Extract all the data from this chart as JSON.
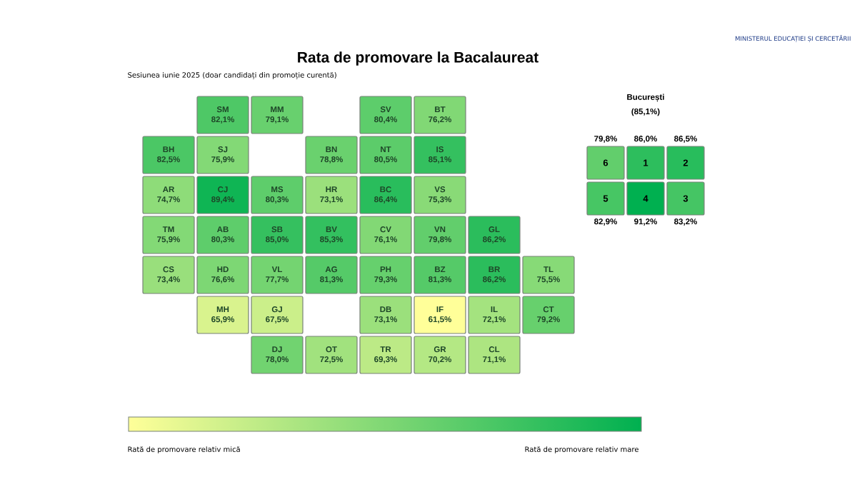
{
  "chart_data": [
    {
      "type": "other",
      "title": "Rata de promovare la Bacalaureat",
      "subtitle": "Sesiunea iunie 2025 (doar candidați din promoție curentă)",
      "categories": [
        "SM",
        "MM",
        "SV",
        "BT",
        "BH",
        "SJ",
        "BN",
        "NT",
        "IS",
        "AR",
        "CJ",
        "MS",
        "HR",
        "BC",
        "VS",
        "TM",
        "AB",
        "SB",
        "BV",
        "CV",
        "VN",
        "GL",
        "CS",
        "HD",
        "VL",
        "AG",
        "PH",
        "BZ",
        "BR",
        "TL",
        "MH",
        "GJ",
        "DB",
        "IF",
        "IL",
        "CT",
        "DJ",
        "OT",
        "TR",
        "GR",
        "CL"
      ],
      "values": [
        82.1,
        79.1,
        80.4,
        76.2,
        82.5,
        75.9,
        78.8,
        80.5,
        85.1,
        74.7,
        89.4,
        80.3,
        73.1,
        86.4,
        75.3,
        75.9,
        80.3,
        85.0,
        85.3,
        76.1,
        79.8,
        86.2,
        73.4,
        76.6,
        77.7,
        81.3,
        79.3,
        81.3,
        86.2,
        75.5,
        65.9,
        67.5,
        73.1,
        61.5,
        72.1,
        79.2,
        78.0,
        72.5,
        69.3,
        70.2,
        71.1
      ],
      "value_labels": [
        "82,1%",
        "79,1%",
        "80,4%",
        "76,2%",
        "82,5%",
        "75,9%",
        "78,8%",
        "80,5%",
        "85,1%",
        "74,7%",
        "89,4%",
        "80,3%",
        "73,1%",
        "86,4%",
        "75,3%",
        "75,9%",
        "80,3%",
        "85,0%",
        "85,3%",
        "76,1%",
        "79,8%",
        "86,2%",
        "73,4%",
        "76,6%",
        "77,7%",
        "81,3%",
        "79,3%",
        "81,3%",
        "86,2%",
        "75,5%",
        "65,9%",
        "67,5%",
        "73,1%",
        "61,5%",
        "72,1%",
        "79,2%",
        "78,0%",
        "72,5%",
        "69,3%",
        "70,2%",
        "71,1%"
      ],
      "annotations": [
        "MINISTERUL EDUCAȚIEI ȘI CERCETĂRII",
        "Rată de promovare relativ mică",
        "Rată de promovare relativ mare"
      ]
    },
    {
      "type": "other",
      "title": "București",
      "subtitle": "(85,1%)",
      "categories": [
        "6",
        "1",
        "2",
        "5",
        "4",
        "3"
      ],
      "values": [
        79.8,
        86.0,
        86.5,
        82.9,
        91.2,
        83.2
      ],
      "value_labels": [
        "79,8%",
        "86,0%",
        "86,5%",
        "82,9%",
        "91,2%",
        "83,2%"
      ]
    }
  ]
}
